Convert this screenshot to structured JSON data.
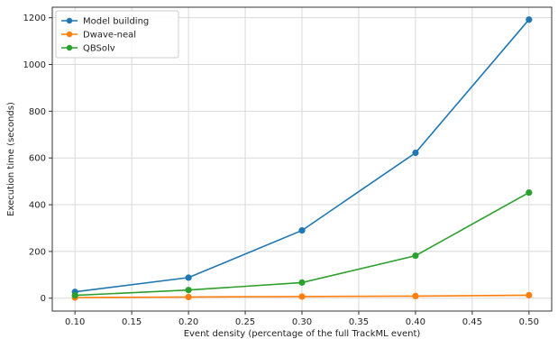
{
  "chart_data": {
    "type": "line",
    "title": "",
    "xlabel": "Event density (percentage of the full TrackML event)",
    "ylabel": "Execution time (seconds)",
    "x": [
      0.1,
      0.2,
      0.3,
      0.4,
      0.5
    ],
    "xticks": [
      "0.10",
      "0.15",
      "0.20",
      "0.25",
      "0.30",
      "0.35",
      "0.40",
      "0.45",
      "0.50"
    ],
    "yticks": [
      "0",
      "200",
      "400",
      "600",
      "800",
      "1000",
      "1200"
    ],
    "xlim": [
      0.08,
      0.52
    ],
    "ylim": [
      -55,
      1245
    ],
    "grid": true,
    "legend_position": "top-left",
    "series": [
      {
        "name": "Model building",
        "color": "#1f77b4",
        "values": [
          27,
          88,
          290,
          622,
          1192
        ]
      },
      {
        "name": "Dwave-neal",
        "color": "#ff7f0e",
        "values": [
          3,
          5,
          7,
          9,
          13
        ]
      },
      {
        "name": "QBSolv",
        "color": "#2ca02c",
        "values": [
          12,
          35,
          67,
          182,
          452
        ]
      }
    ]
  }
}
